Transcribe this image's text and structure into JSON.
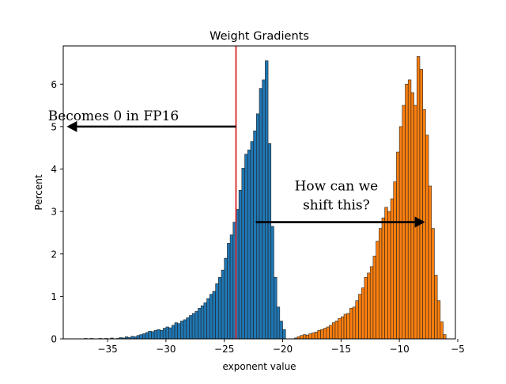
{
  "chart_data": {
    "type": "histogram",
    "title": "Weight Gradients",
    "xlabel": "exponent value",
    "ylabel": "Percent",
    "xlim": [
      -38.8,
      -5.2
    ],
    "ylim": [
      0,
      6.9
    ],
    "x_ticks": [
      -35,
      -30,
      -25,
      -20,
      -15,
      -10,
      -5
    ],
    "x_tick_labels": [
      "−35",
      "−30",
      "−25",
      "−20",
      "−15",
      "−10",
      "−5"
    ],
    "y_ticks": [
      0,
      1,
      2,
      3,
      4,
      5,
      6
    ],
    "y_tick_labels": [
      "0",
      "1",
      "2",
      "3",
      "4",
      "5",
      "6"
    ],
    "grid": false,
    "bin_width": 0.25,
    "series": [
      {
        "color": "#1f77b4",
        "bin_starts": [
          -37.0,
          -36.75,
          -36.5,
          -36.25,
          -36.0,
          -35.75,
          -35.5,
          -35.25,
          -35.0,
          -34.75,
          -34.5,
          -34.25,
          -34.0,
          -33.75,
          -33.5,
          -33.25,
          -33.0,
          -32.75,
          -32.5,
          -32.25,
          -32.0,
          -31.75,
          -31.5,
          -31.25,
          -31.0,
          -30.75,
          -30.5,
          -30.25,
          -30.0,
          -29.75,
          -29.5,
          -29.25,
          -29.0,
          -28.75,
          -28.5,
          -28.25,
          -28.0,
          -27.75,
          -27.5,
          -27.25,
          -27.0,
          -26.75,
          -26.5,
          -26.25,
          -26.0,
          -25.75,
          -25.5,
          -25.25,
          -25.0,
          -24.75,
          -24.5,
          -24.25,
          -24.0,
          -23.75,
          -23.5,
          -23.25,
          -23.0,
          -22.75,
          -22.5,
          -22.25,
          -22.0,
          -21.75,
          -21.5,
          -21.25,
          -21.0,
          -20.75,
          -20.5,
          -20.25,
          -20.0
        ],
        "values": [
          0.01,
          0.0,
          0.01,
          0.0,
          0.0,
          0.01,
          0.0,
          0.01,
          0.0,
          0.02,
          0.0,
          0.01,
          0.03,
          0.02,
          0.05,
          0.03,
          0.06,
          0.05,
          0.08,
          0.1,
          0.12,
          0.15,
          0.18,
          0.17,
          0.2,
          0.22,
          0.2,
          0.25,
          0.28,
          0.26,
          0.32,
          0.38,
          0.36,
          0.42,
          0.45,
          0.5,
          0.55,
          0.6,
          0.65,
          0.72,
          0.78,
          0.85,
          0.95,
          1.05,
          1.12,
          1.3,
          1.45,
          1.62,
          1.9,
          2.25,
          2.45,
          2.75,
          3.05,
          3.5,
          4.02,
          4.35,
          4.45,
          4.65,
          4.9,
          5.3,
          5.9,
          6.1,
          6.55,
          4.6,
          2.65,
          1.45,
          0.75,
          0.42,
          0.22
        ]
      },
      {
        "color": "#ff7f0e",
        "bin_starts": [
          -19.0,
          -18.75,
          -18.5,
          -18.25,
          -18.0,
          -17.75,
          -17.5,
          -17.25,
          -17.0,
          -16.75,
          -16.5,
          -16.25,
          -16.0,
          -15.75,
          -15.5,
          -15.25,
          -15.0,
          -14.75,
          -14.5,
          -14.25,
          -14.0,
          -13.75,
          -13.5,
          -13.25,
          -13.0,
          -12.75,
          -12.5,
          -12.25,
          -12.0,
          -11.75,
          -11.5,
          -11.25,
          -11.0,
          -10.75,
          -10.5,
          -10.25,
          -10.0,
          -9.75,
          -9.5,
          -9.25,
          -9.0,
          -8.75,
          -8.5,
          -8.25,
          -8.0,
          -7.75,
          -7.5,
          -7.25,
          -7.0,
          -6.75,
          -6.5,
          -6.25
        ],
        "values": [
          0.02,
          0.05,
          0.08,
          0.1,
          0.09,
          0.12,
          0.14,
          0.16,
          0.2,
          0.22,
          0.25,
          0.28,
          0.32,
          0.38,
          0.42,
          0.48,
          0.52,
          0.58,
          0.6,
          0.72,
          0.75,
          0.9,
          1.05,
          1.2,
          1.45,
          1.55,
          1.7,
          1.95,
          2.3,
          2.6,
          2.85,
          3.1,
          3.0,
          3.3,
          3.7,
          4.4,
          5.0,
          5.5,
          6.0,
          6.1,
          5.8,
          5.5,
          6.65,
          6.35,
          5.4,
          4.8,
          3.6,
          2.6,
          1.5,
          0.9,
          0.4,
          0.1
        ]
      }
    ],
    "reference_lines": [
      {
        "orientation": "vertical",
        "x": -24,
        "color": "#d62728"
      }
    ],
    "annotations": [
      {
        "text": "Becomes 0 in FP16",
        "text_position": [
          -34.5,
          5.15
        ],
        "arrow_from": [
          -24.0,
          5.0
        ],
        "arrow_to": [
          -38.5,
          5.0
        ]
      },
      {
        "text": "How can we",
        "text_position": [
          -15.4,
          3.5
        ],
        "arrow_from": null,
        "arrow_to": null
      },
      {
        "text": "shift this?",
        "text_position": [
          -15.4,
          3.05
        ],
        "arrow_from": [
          -22.3,
          2.75
        ],
        "arrow_to": [
          -7.8,
          2.75
        ]
      }
    ]
  }
}
